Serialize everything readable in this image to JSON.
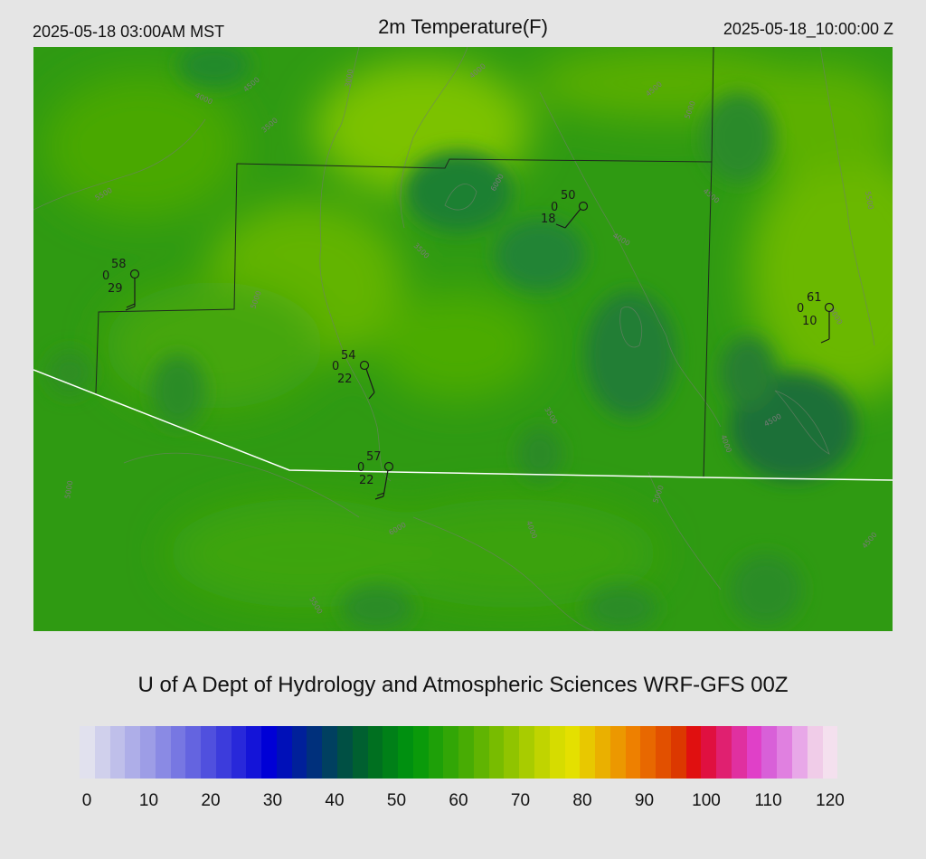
{
  "header": {
    "valid_local": "2025-05-18 03:00AM MST",
    "title": "2m Temperature(F)",
    "valid_utc": "2025-05-18_10:00:00 Z"
  },
  "credit": "U of A Dept of Hydrology and Atmospheric Sciences WRF-GFS 00Z",
  "colorbar": {
    "ticks": [
      "0",
      "10",
      "20",
      "30",
      "40",
      "50",
      "60",
      "70",
      "80",
      "90",
      "100",
      "110",
      "120"
    ],
    "min": 0,
    "max": 120,
    "colors": [
      "#e1e1ee",
      "#d0d0ec",
      "#bfbfea",
      "#aeaee8",
      "#9d9de6",
      "#8a8ae4",
      "#7777e2",
      "#6464e0",
      "#5050de",
      "#3c3cdc",
      "#2828da",
      "#1414d8",
      "#0000d6",
      "#0010b8",
      "#00209a",
      "#00307c",
      "#004060",
      "#005044",
      "#006030",
      "#007020",
      "#008018",
      "#009010",
      "#0a9a0a",
      "#1ea008",
      "#32a606",
      "#48ac04",
      "#60b402",
      "#78bc00",
      "#90c400",
      "#a8cc00",
      "#c0d400",
      "#d6dc00",
      "#e4e000",
      "#e8c800",
      "#eab000",
      "#ec9800",
      "#ee8000",
      "#e86800",
      "#e25000",
      "#dc3800",
      "#e01010",
      "#e01040",
      "#e02070",
      "#e030a0",
      "#e040c8",
      "#d860d8",
      "#e080e0",
      "#e8a8e8",
      "#f0cce8",
      "#f4e0ee"
    ]
  },
  "map": {
    "contour_labels": [
      "4000",
      "4500",
      "3000",
      "3500",
      "4000",
      "4500",
      "5000",
      "5500",
      "6000",
      "3500",
      "4000",
      "4500",
      "5000",
      "5500",
      "6000",
      "3500",
      "4000",
      "4500",
      "5000",
      "6000",
      "4000",
      "5000",
      "5500",
      "4500"
    ],
    "stations": [
      {
        "temp": "58",
        "left": "0",
        "bottom": "29"
      },
      {
        "temp": "50",
        "left": "0",
        "bottom": "18"
      },
      {
        "temp": "61",
        "left": "0",
        "bottom": "10"
      },
      {
        "temp": "54",
        "left": "0",
        "bottom": "22"
      },
      {
        "temp": "57",
        "left": "0",
        "bottom": "22"
      }
    ]
  }
}
